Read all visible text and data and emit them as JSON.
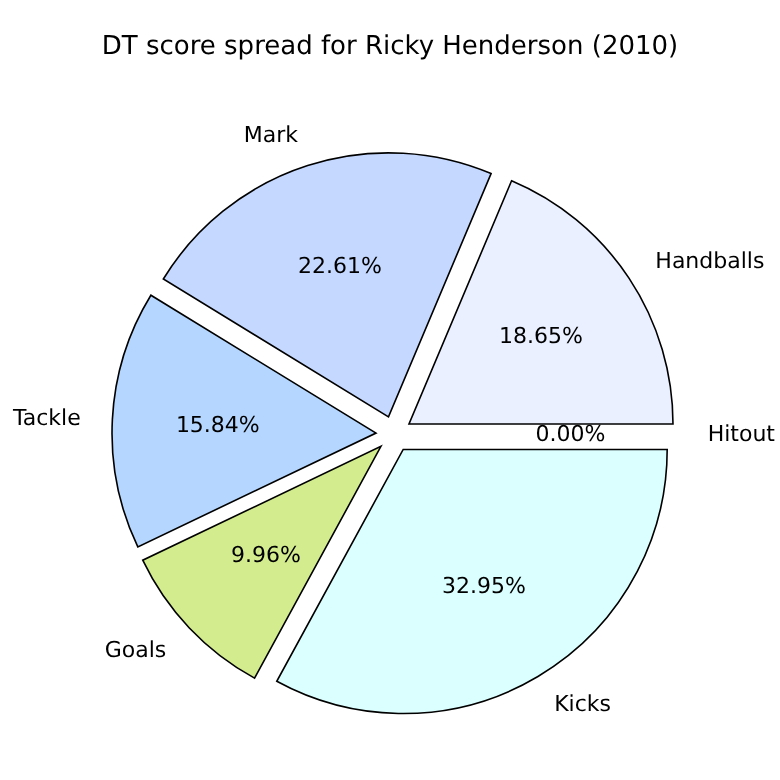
{
  "chart_data": {
    "type": "pie",
    "title": "DT score spread for Ricky Henderson (2010)",
    "categories": [
      "Handballs",
      "Mark",
      "Tackle",
      "Goals",
      "Kicks",
      "Hitout"
    ],
    "values": [
      18.65,
      22.61,
      15.84,
      9.96,
      32.95,
      0.0
    ],
    "value_labels": [
      "18.65%",
      "22.61%",
      "15.84%",
      "9.96%",
      "32.95%",
      "0.00%"
    ],
    "colors": [
      "#eaf0ff",
      "#c5d8ff",
      "#b5d7ff",
      "#d3ec8d",
      "#dbffff",
      "#ffffff"
    ],
    "legend": false
  }
}
